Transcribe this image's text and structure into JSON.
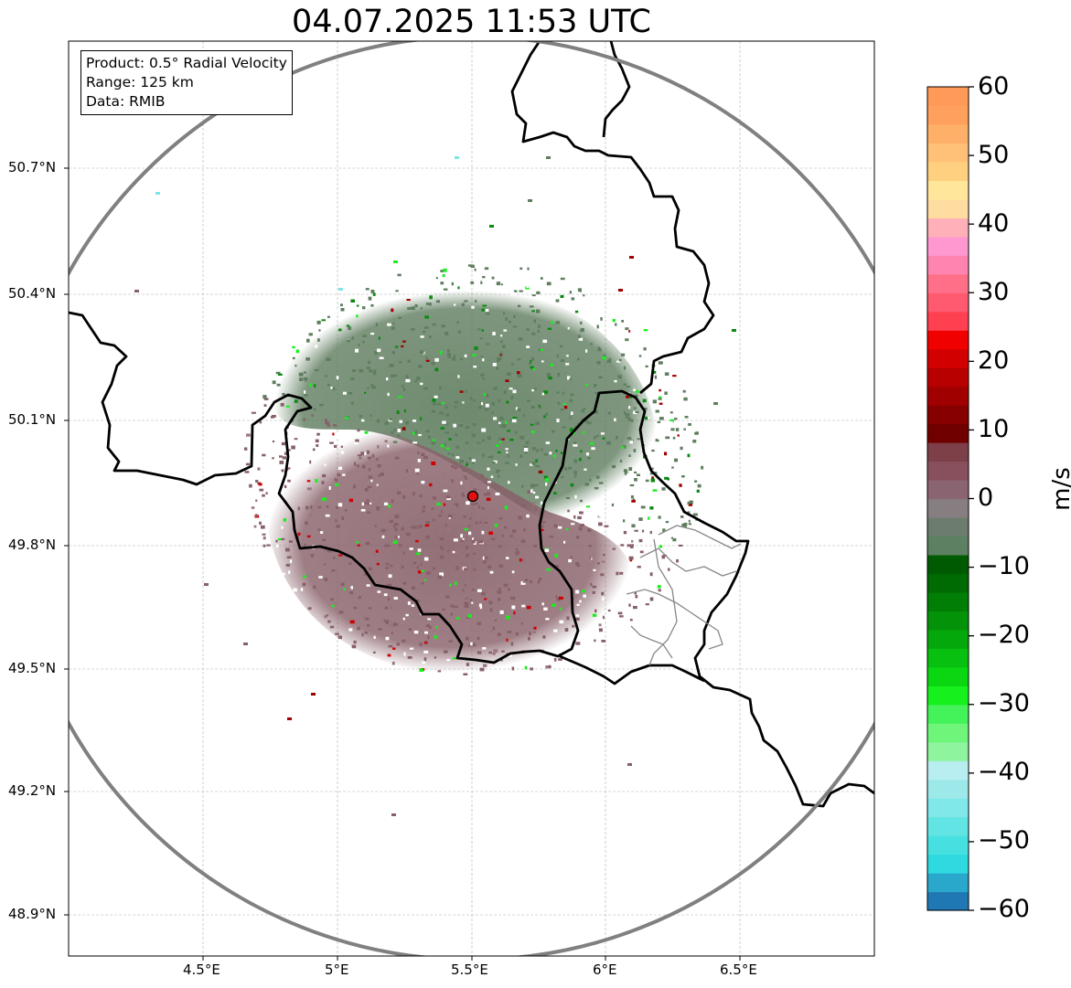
{
  "title": "04.07.2025 11:53 UTC",
  "info": {
    "product": "Product: 0.5° Radial Velocity",
    "range": "Range: 125 km",
    "data": "Data: RMIB"
  },
  "axes": {
    "lat_labels": [
      "50.7°N",
      "50.4°N",
      "50.1°N",
      "49.8°N",
      "49.5°N",
      "49.2°N",
      "48.9°N"
    ],
    "lon_labels": [
      "4.5°E",
      "5°E",
      "5.5°E",
      "6°E",
      "6.5°E"
    ],
    "lon_range": [
      4.0,
      7.0
    ],
    "lat_range": [
      48.8,
      50.98
    ]
  },
  "radar_site": {
    "lon": 5.505,
    "lat": 49.914,
    "name_icon": "radar-site-marker"
  },
  "colorbar": {
    "label": "m/s",
    "ticks": [
      "60",
      "50",
      "40",
      "30",
      "20",
      "10",
      "0",
      "−10",
      "−20",
      "−30",
      "−40",
      "−50",
      "−60"
    ],
    "range": [
      -60,
      60
    ],
    "colors": [
      "#1f78b4",
      "#29a8cc",
      "#2ed9e0",
      "#47e0e0",
      "#63e4e4",
      "#80e8e8",
      "#9de9ea",
      "#b9eef0",
      "#8ef59e",
      "#6ef57a",
      "#44f35a",
      "#16f01c",
      "#0ad612",
      "#08c00f",
      "#05a80a",
      "#049308",
      "#017e05",
      "#006a03",
      "#005a02",
      "#5c8061",
      "#6c7d6e",
      "#867e80",
      "#8b6472",
      "#88505c",
      "#7d4048",
      "#700000",
      "#870000",
      "#a00000",
      "#b80000",
      "#d30000",
      "#f10000",
      "#ff4050",
      "#ff5a70",
      "#ff7088",
      "#ff84b0",
      "#ff98d0",
      "#ffb0b8",
      "#ffdca0",
      "#ffe69a",
      "#ffd080",
      "#ffc078",
      "#ffb068",
      "#ffa05c",
      "#ff9a58"
    ]
  },
  "colors": {
    "range_ring": "#808080",
    "border": "#000000",
    "admin_border": "#888888",
    "grid": "#b0b0b0",
    "echo_green": "#5f7d5f",
    "echo_maroon": "#876068",
    "site_fill": "#e01010"
  }
}
